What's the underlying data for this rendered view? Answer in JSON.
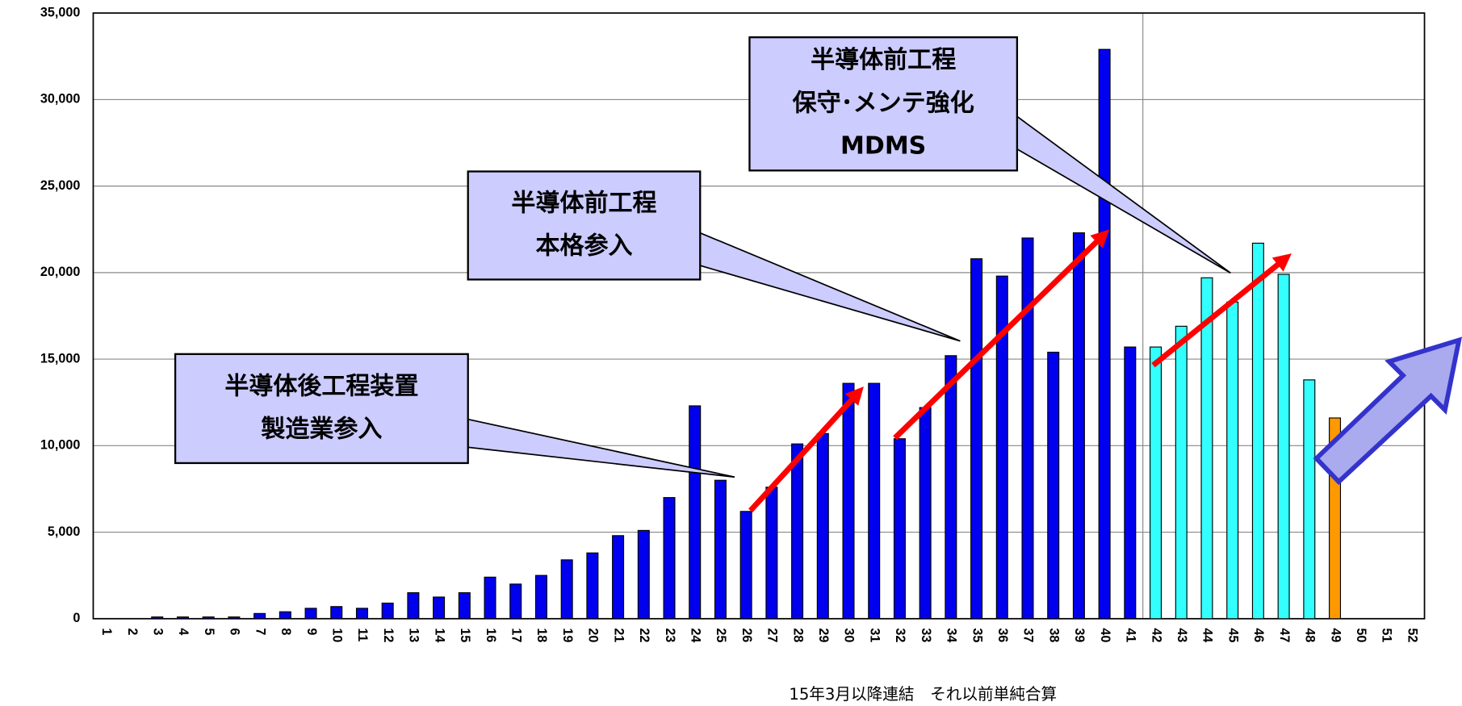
{
  "chart_data": {
    "type": "bar",
    "categories": [
      "1",
      "2",
      "3",
      "4",
      "5",
      "6",
      "7",
      "8",
      "9",
      "10",
      "11",
      "12",
      "13",
      "14",
      "15",
      "16",
      "17",
      "18",
      "19",
      "20",
      "21",
      "22",
      "23",
      "24",
      "25",
      "26",
      "27",
      "28",
      "29",
      "30",
      "31",
      "32",
      "33",
      "34",
      "35",
      "36",
      "37",
      "38",
      "39",
      "40",
      "41",
      "42",
      "43",
      "44",
      "45",
      "46",
      "47",
      "48",
      "49",
      "50",
      "51",
      "52"
    ],
    "values": [
      0,
      0,
      100,
      100,
      100,
      100,
      300,
      400,
      600,
      700,
      600,
      900,
      1500,
      1250,
      1500,
      2400,
      2000,
      2500,
      3400,
      3800,
      4800,
      5100,
      7000,
      12300,
      8000,
      6200,
      7600,
      10100,
      10700,
      13600,
      13600,
      10400,
      12200,
      15200,
      20800,
      19800,
      22000,
      15400,
      22300,
      32900,
      15700,
      15700,
      16900,
      19700,
      18300,
      21700,
      19900,
      13800,
      11600,
      null,
      null,
      null
    ],
    "colors": [
      "#0000ee",
      "#0000ee",
      "#0000ee",
      "#0000ee",
      "#0000ee",
      "#0000ee",
      "#0000ee",
      "#0000ee",
      "#0000ee",
      "#0000ee",
      "#0000ee",
      "#0000ee",
      "#0000ee",
      "#0000ee",
      "#0000ee",
      "#0000ee",
      "#0000ee",
      "#0000ee",
      "#0000ee",
      "#0000ee",
      "#0000ee",
      "#0000ee",
      "#0000ee",
      "#0000ee",
      "#0000ee",
      "#0000ee",
      "#0000ee",
      "#0000ee",
      "#0000ee",
      "#0000ee",
      "#0000ee",
      "#0000ee",
      "#0000ee",
      "#0000ee",
      "#0000ee",
      "#0000ee",
      "#0000ee",
      "#0000ee",
      "#0000ee",
      "#0000ee",
      "#0000ee",
      "#33ffff",
      "#33ffff",
      "#33ffff",
      "#33ffff",
      "#33ffff",
      "#33ffff",
      "#33ffff",
      "#ff9900",
      "#0000ee",
      "#0000ee",
      "#0000ee"
    ],
    "ylim": [
      0,
      35000
    ],
    "yticks": [
      0,
      {
        "value": 5000,
        "label": "5,000"
      },
      {
        "value": 10000,
        "label": "10,000"
      },
      {
        "value": 15000,
        "label": "15,000"
      },
      {
        "value": 20000,
        "label": "20,000"
      },
      {
        "value": 25000,
        "label": "25,000"
      },
      {
        "value": 30000,
        "label": "30,000"
      },
      {
        "value": 35000,
        "label": "35,000"
      }
    ],
    "grid": true,
    "annotations": [
      {
        "lines": [
          "半導体後工程装置",
          "製造業参入"
        ]
      },
      {
        "lines": [
          "半導体前工程",
          "本格参入"
        ]
      },
      {
        "lines": [
          "半導体前工程",
          "保守･メンテ強化",
          "MDMS"
        ]
      }
    ],
    "note": "15年3月以降連結　それ以前単純合算"
  }
}
